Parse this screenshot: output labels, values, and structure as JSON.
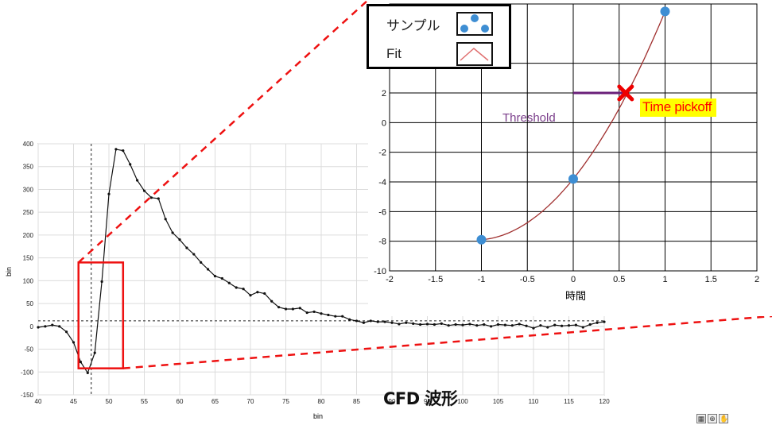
{
  "caption": "CFD 波形",
  "legend": {
    "sample_label": "サンプル",
    "fit_label": "Fit"
  },
  "annotations": {
    "time_pickoff": "Time pickoff",
    "threshold": "Threshold"
  },
  "toolbar": {
    "tool_icons": [
      "cursor-grid-icon",
      "zoom-icon",
      "pan-hand-icon"
    ]
  },
  "chart_data": [
    {
      "type": "line",
      "title": "",
      "xlabel": "bin",
      "ylabel": "bin",
      "xlim": [
        40,
        120
      ],
      "ylim": [
        -150,
        400
      ],
      "xticks": [
        40,
        45,
        50,
        55,
        60,
        65,
        70,
        75,
        80,
        85,
        90,
        95,
        100,
        105,
        110,
        115,
        120
      ],
      "yticks": [
        -150,
        -100,
        -50,
        0,
        50,
        100,
        150,
        200,
        250,
        300,
        350,
        400
      ],
      "grid": true,
      "cursor": {
        "x": 47.5,
        "y": 12
      },
      "series": [
        {
          "x": [
            40,
            41,
            42,
            43,
            44,
            45,
            46,
            47,
            48,
            49,
            50,
            51,
            52,
            53,
            54,
            55,
            56,
            57,
            58,
            59,
            60,
            61,
            62,
            63,
            64,
            65,
            66,
            67,
            68,
            69,
            70,
            71,
            72,
            73,
            74,
            75,
            76,
            77,
            78,
            79,
            80,
            81,
            82,
            83,
            84,
            85,
            86,
            87,
            88,
            89,
            90,
            91,
            92,
            93,
            94,
            95,
            96,
            97,
            98,
            99,
            100,
            101,
            102,
            103,
            104,
            105,
            106,
            107,
            108,
            109,
            110,
            111,
            112,
            113,
            114,
            115,
            116,
            117,
            118,
            119,
            120
          ],
          "values": [
            -2,
            0,
            3,
            0,
            -12,
            -35,
            -78,
            -102,
            -58,
            98,
            290,
            388,
            385,
            355,
            320,
            297,
            282,
            280,
            235,
            205,
            190,
            172,
            158,
            140,
            125,
            110,
            105,
            95,
            85,
            82,
            68,
            75,
            72,
            55,
            42,
            38,
            38,
            40,
            30,
            32,
            28,
            25,
            22,
            22,
            15,
            12,
            8,
            12,
            10,
            10,
            8,
            5,
            8,
            6,
            4,
            5,
            4,
            6,
            2,
            4,
            3,
            5,
            2,
            4,
            0,
            4,
            3,
            2,
            5,
            1,
            -4,
            2,
            -2,
            3,
            1,
            2,
            3,
            -2,
            4,
            8,
            10
          ]
        }
      ],
      "zoom_box": {
        "x": [
          45.7,
          52.0
        ],
        "y": [
          -92,
          140
        ]
      }
    },
    {
      "type": "scatter",
      "title": "",
      "xlabel": "時間",
      "ylabel": "",
      "xlim": [
        -2,
        2
      ],
      "ylim": [
        -10,
        8
      ],
      "xticks": [
        -2,
        -1.5,
        -1,
        -0.5,
        0,
        0.5,
        1,
        1.5,
        2
      ],
      "yticks": [
        -10,
        -8,
        -6,
        -4,
        -2,
        0,
        2,
        4
      ],
      "grid": true,
      "series": [
        {
          "name": "サンプル",
          "x": [
            -1,
            0,
            1
          ],
          "values": [
            -7.9,
            -3.8,
            7.5
          ]
        },
        {
          "name": "Fit",
          "fit": "quadratic"
        }
      ],
      "threshold": {
        "y": 2,
        "x_start": 0,
        "x_end": 0.6
      },
      "time_pickoff": {
        "x": 0.57,
        "y": 2
      }
    }
  ]
}
